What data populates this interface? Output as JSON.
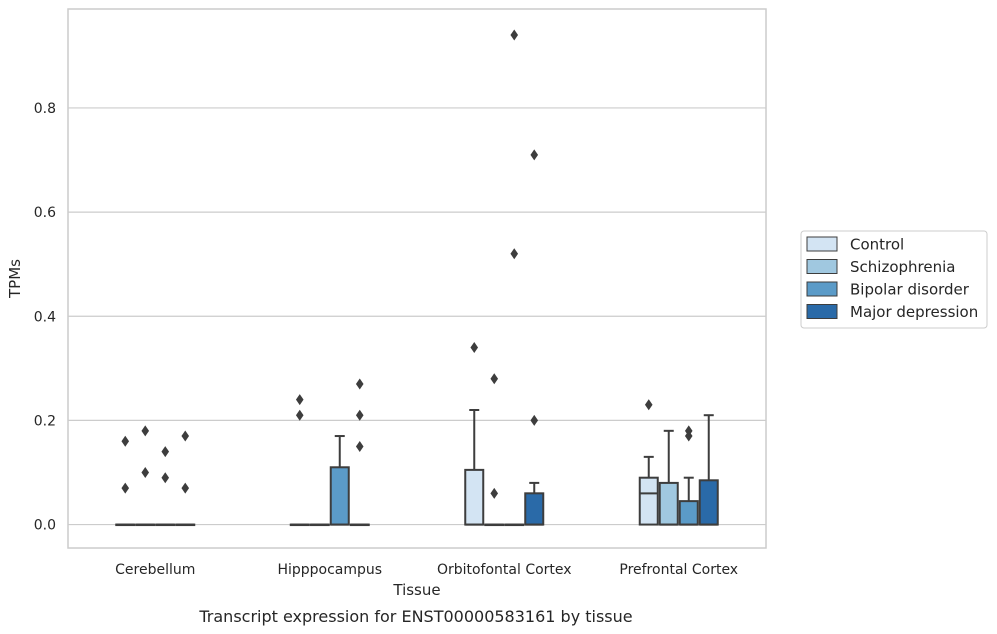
{
  "chart_data": {
    "type": "box",
    "title": "",
    "caption": "Transcript expression for ENST00000583161 by tissue",
    "xlabel": "Tissue",
    "ylabel": "TPMs",
    "ylim": [
      -0.045,
      0.99
    ],
    "yticks": [
      "0.0",
      "0.2",
      "0.4",
      "0.6",
      "0.8"
    ],
    "grid": "horizontal",
    "legend_position": "right",
    "categories": [
      "Cerebellum",
      "Hipppocampus",
      "Orbitofontal Cortex",
      "Prefrontal Cortex"
    ],
    "series": [
      {
        "name": "Control",
        "color": "#d3e4f3",
        "boxes": [
          {
            "whislo": 0,
            "q1": 0,
            "med": 0,
            "q3": 0,
            "whishi": 0,
            "fliers": [
              0.16,
              0.07
            ]
          },
          {
            "whislo": 0,
            "q1": 0,
            "med": 0,
            "q3": 0,
            "whishi": 0,
            "fliers": [
              0.24,
              0.21
            ]
          },
          {
            "whislo": 0,
            "q1": 0,
            "med": 0,
            "q3": 0.105,
            "whishi": 0.22,
            "fliers": [
              0.34
            ]
          },
          {
            "whislo": 0,
            "q1": 0,
            "med": 0.06,
            "q3": 0.09,
            "whishi": 0.13,
            "fliers": [
              0.23
            ]
          }
        ]
      },
      {
        "name": "Schizophrenia",
        "color": "#a0c8e0",
        "boxes": [
          {
            "whislo": 0,
            "q1": 0,
            "med": 0,
            "q3": 0,
            "whishi": 0,
            "fliers": [
              0.18,
              0.1
            ]
          },
          {
            "whislo": 0,
            "q1": 0,
            "med": 0,
            "q3": 0,
            "whishi": 0,
            "fliers": []
          },
          {
            "whislo": 0,
            "q1": 0,
            "med": 0,
            "q3": 0,
            "whishi": 0,
            "fliers": [
              0.28,
              0.06
            ]
          },
          {
            "whislo": 0,
            "q1": 0,
            "med": 0,
            "q3": 0.08,
            "whishi": 0.18,
            "fliers": []
          }
        ]
      },
      {
        "name": "Bipolar disorder",
        "color": "#5b9bc8",
        "boxes": [
          {
            "whislo": 0,
            "q1": 0,
            "med": 0,
            "q3": 0,
            "whishi": 0,
            "fliers": [
              0.14,
              0.09
            ]
          },
          {
            "whislo": 0,
            "q1": 0,
            "med": 0,
            "q3": 0.11,
            "whishi": 0.17,
            "fliers": []
          },
          {
            "whislo": 0,
            "q1": 0,
            "med": 0,
            "q3": 0,
            "whishi": 0,
            "fliers": [
              0.94,
              0.52
            ]
          },
          {
            "whislo": 0,
            "q1": 0,
            "med": 0,
            "q3": 0.045,
            "whishi": 0.09,
            "fliers": [
              0.18,
              0.17
            ]
          }
        ]
      },
      {
        "name": "Major depression",
        "color": "#2a6aa8",
        "boxes": [
          {
            "whislo": 0,
            "q1": 0,
            "med": 0,
            "q3": 0,
            "whishi": 0,
            "fliers": [
              0.17,
              0.07
            ]
          },
          {
            "whislo": 0,
            "q1": 0,
            "med": 0,
            "q3": 0,
            "whishi": 0,
            "fliers": [
              0.27,
              0.21,
              0.15
            ]
          },
          {
            "whislo": 0,
            "q1": 0,
            "med": 0,
            "q3": 0.06,
            "whishi": 0.08,
            "fliers": [
              0.71,
              0.2
            ]
          },
          {
            "whislo": 0,
            "q1": 0,
            "med": 0,
            "q3": 0.085,
            "whishi": 0.21,
            "fliers": []
          }
        ]
      }
    ]
  },
  "colors": {
    "axes_frame": "#cccccc",
    "gridline": "#cccccc",
    "box_edge": "#3d3d3d",
    "text": "#262626"
  }
}
